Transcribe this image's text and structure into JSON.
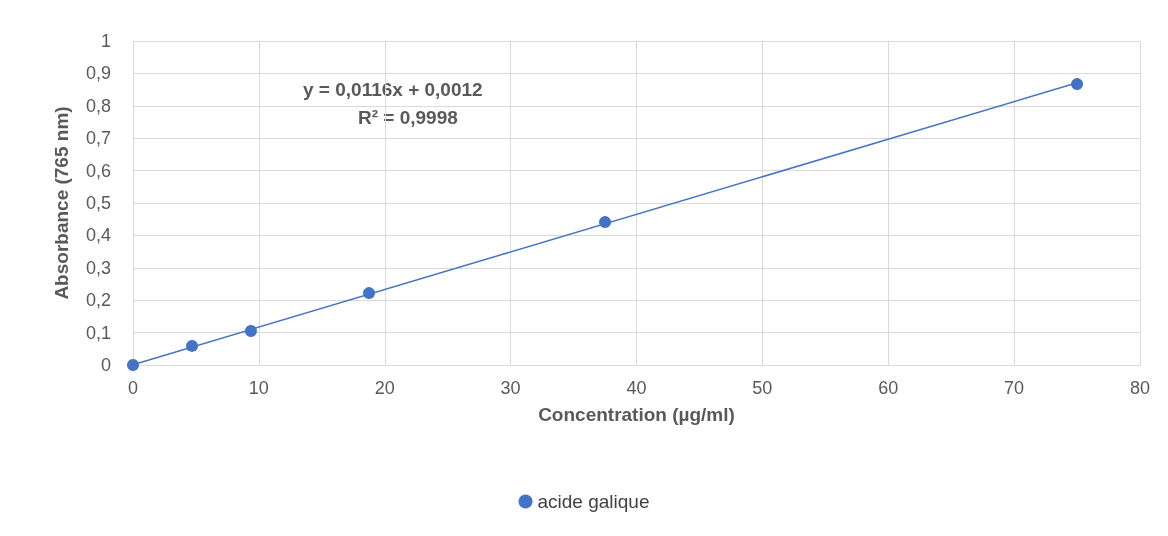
{
  "chart_data": {
    "type": "scatter",
    "xlabel": "Concentration (µg/ml)",
    "ylabel": "Absorbance (765 nm)",
    "annotations": [
      "y = 0,0116x + 0,0012",
      "R² = 0,9998"
    ],
    "series": [
      {
        "name": "acide galique",
        "color": "#4472c4",
        "marker": "circle",
        "x": [
          0,
          4.69,
          9.37,
          18.75,
          37.5,
          75
        ],
        "values": [
          0,
          0.059,
          0.105,
          0.222,
          0.441,
          0.867
        ]
      },
      {
        "type": "line",
        "color": "#4472c4",
        "marker": "none",
        "line_style": "solid",
        "x": [
          0,
          75
        ],
        "values": [
          0.001,
          0.871
        ]
      }
    ],
    "xlim": [
      0,
      80
    ],
    "xticks": [
      0,
      10,
      20,
      30,
      40,
      50,
      60,
      70,
      80
    ],
    "ylim": [
      0,
      1
    ],
    "yticks": [
      0,
      {
        "value": 0.1,
        "label": "0,1"
      },
      {
        "value": 0.2,
        "label": "0,2"
      },
      {
        "value": 0.3,
        "label": "0,3"
      },
      {
        "value": 0.4,
        "label": "0,4"
      },
      {
        "value": 0.5,
        "label": "0,5"
      },
      {
        "value": 0.6,
        "label": "0,6"
      },
      {
        "value": 0.7,
        "label": "0,7"
      },
      {
        "value": 0.8,
        "label": "0,8"
      },
      {
        "value": 0.9,
        "label": "0,9"
      },
      1
    ],
    "grid": true,
    "legend": "bottom"
  }
}
